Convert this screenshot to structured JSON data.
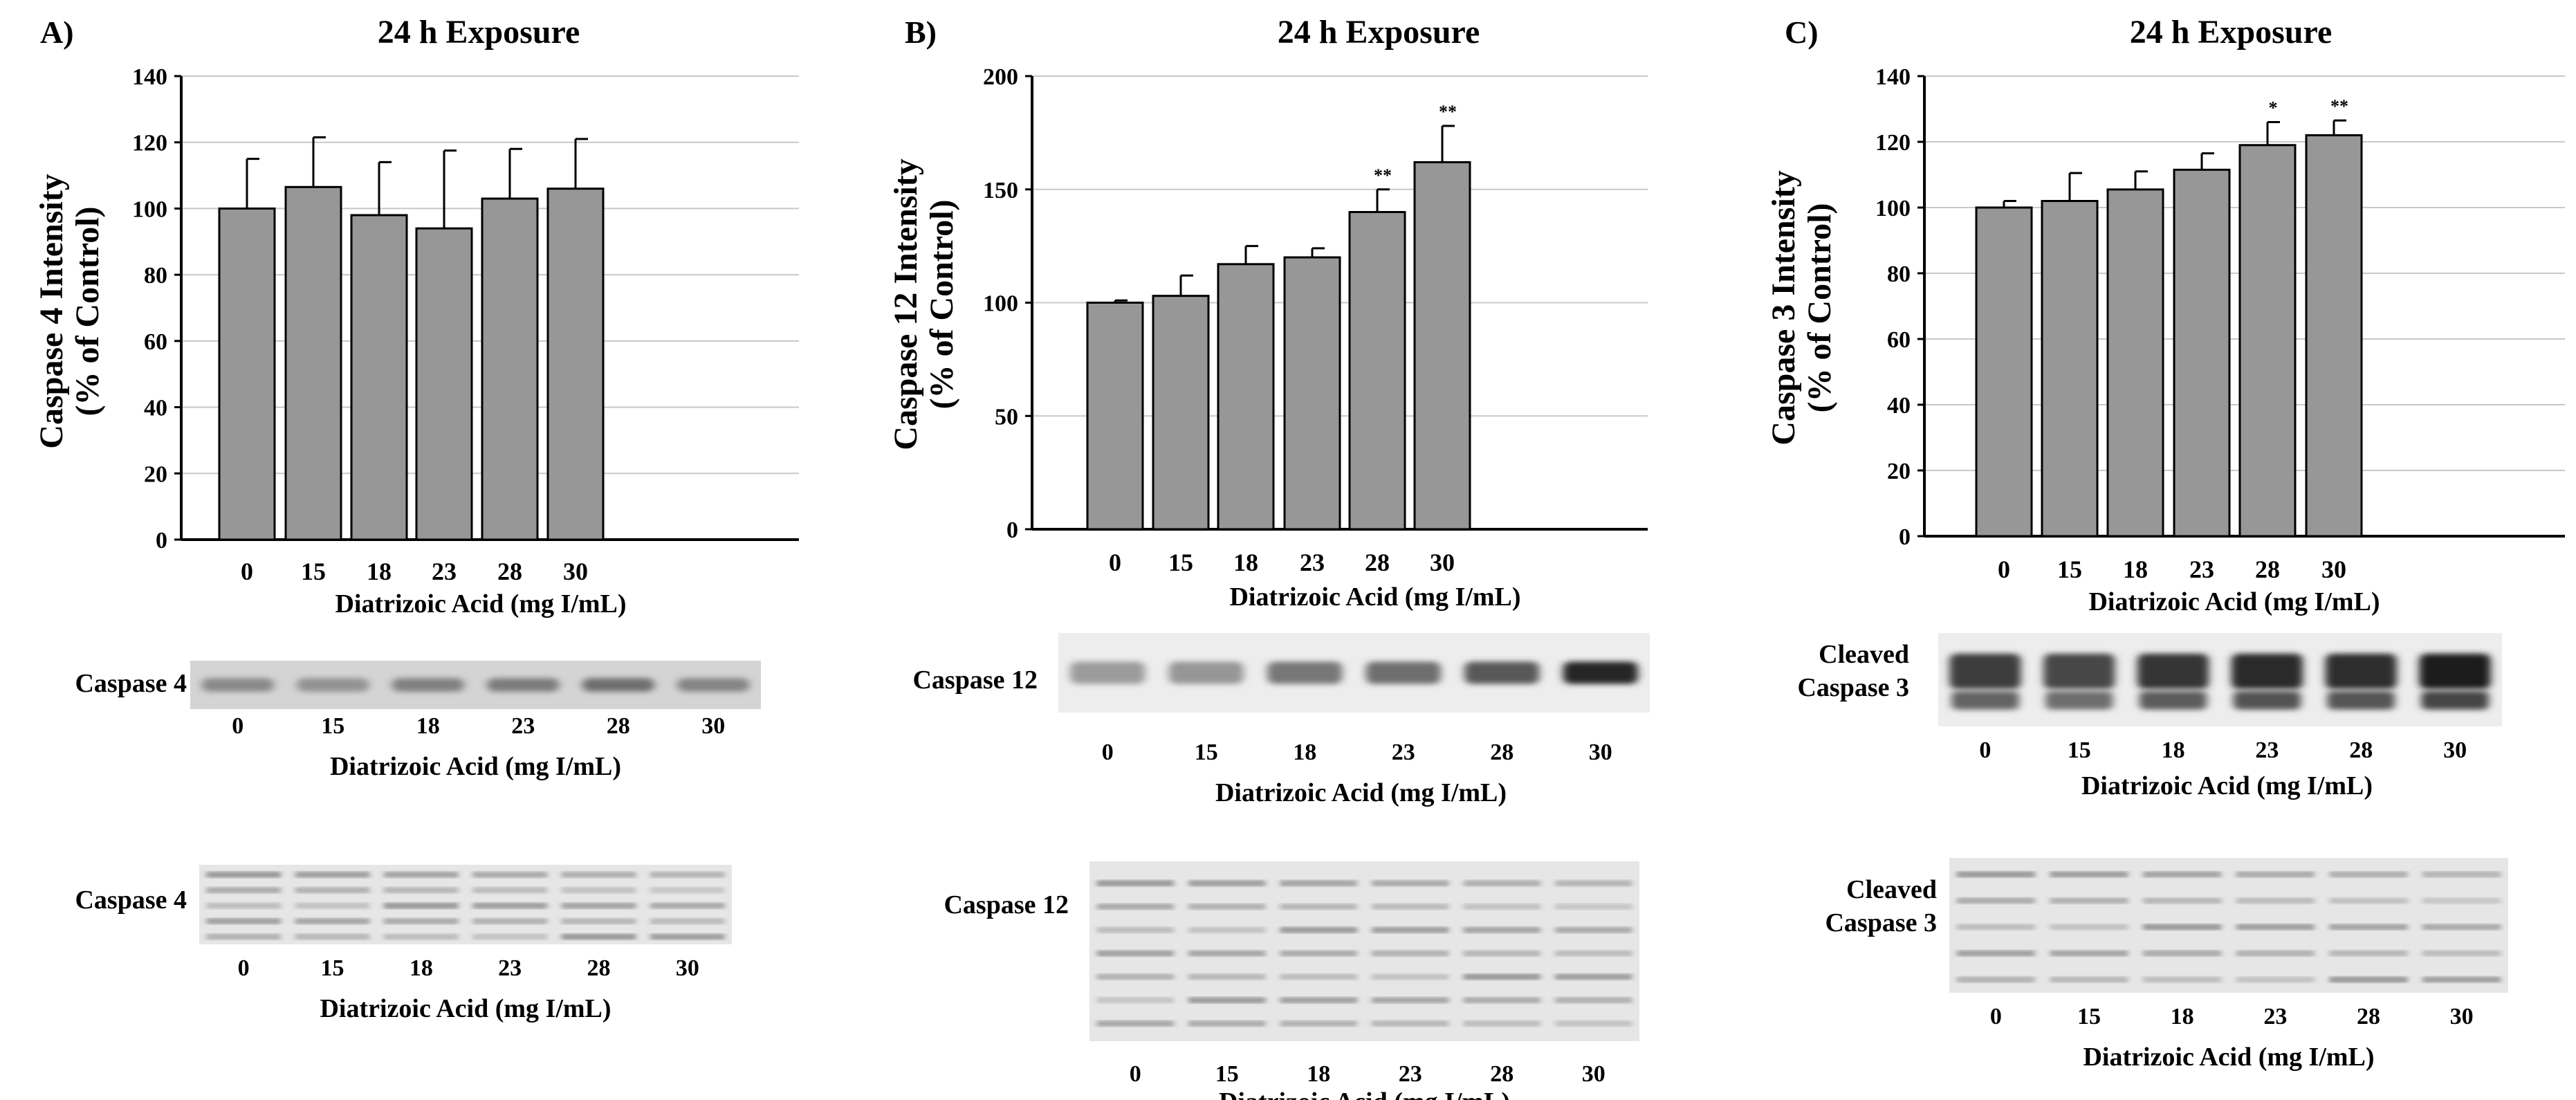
{
  "colors": {
    "bar": "#979797",
    "grid": "#c8c8c8",
    "axis": "#000000",
    "blot_bg": "#ededed",
    "band": "#2a2a2a"
  },
  "panels": [
    {
      "label": "A)",
      "title": "24 h Exposure",
      "blot_label": "Caspase 4",
      "loading_label": "Caspase 4",
      "blot_intensity": [
        0.35,
        0.3,
        0.4,
        0.42,
        0.5,
        0.38
      ],
      "blot_xlabel": "Diatrizoic Acid (mg I/mL)",
      "loading_xlabel": "Diatrizoic Acid (mg I/mL)"
    },
    {
      "label": "B)",
      "title": "24 h Exposure",
      "blot_label": "Caspase 12",
      "loading_label": "Caspase 12",
      "blot_intensity": [
        0.25,
        0.28,
        0.45,
        0.5,
        0.62,
        0.9
      ],
      "blot_xlabel": "Diatrizoic Acid (mg I/mL)",
      "loading_xlabel": "Diatrizoic Acid (mg I/mL)"
    },
    {
      "label": "C)",
      "title": "24 h Exposure",
      "blot_label": [
        "Cleaved",
        "Caspase 3"
      ],
      "loading_label": [
        "Cleaved",
        "Caspase 3"
      ],
      "blot_intensity": [
        0.78,
        0.72,
        0.82,
        0.88,
        0.86,
        0.95
      ],
      "blot_xlabel": "Diatrizoic Acid (mg I/mL)",
      "loading_xlabel": "Diatrizoic Acid (mg I/mL)"
    }
  ],
  "chart_data": [
    {
      "type": "bar",
      "title": "24 h Exposure",
      "xlabel": "Diatrizoic Acid (mg I/mL)",
      "ylabel": [
        "Caspase 4 Intensity",
        "(% of Control)"
      ],
      "categories": [
        "0",
        "15",
        "18",
        "23",
        "28",
        "30"
      ],
      "values": [
        100,
        106.5,
        98,
        94,
        103,
        106
      ],
      "errors": [
        15,
        15,
        16,
        23.5,
        15,
        15
      ],
      "significance": [
        "",
        "",
        "",
        "",
        "",
        ""
      ],
      "ylim": [
        0,
        140
      ],
      "yticks": [
        0,
        20,
        40,
        60,
        80,
        100,
        120,
        140
      ],
      "grid": true
    },
    {
      "type": "bar",
      "title": "24 h Exposure",
      "xlabel": "Diatrizoic Acid (mg I/mL)",
      "ylabel": [
        "Caspase 12 Intensity",
        "(% of Control)"
      ],
      "categories": [
        "0",
        "15",
        "18",
        "23",
        "28",
        "30"
      ],
      "values": [
        100,
        103,
        117,
        120,
        140,
        162
      ],
      "errors": [
        1,
        9,
        8,
        4,
        10,
        16
      ],
      "significance": [
        "",
        "",
        "",
        "",
        "**",
        "**"
      ],
      "ylim": [
        0,
        200
      ],
      "yticks": [
        0,
        50,
        100,
        150,
        200
      ],
      "grid": true
    },
    {
      "type": "bar",
      "title": "24 h Exposure",
      "xlabel": "Diatrizoic Acid (mg I/mL)",
      "ylabel": [
        "Caspase 3 Intensity",
        "(% of Control)"
      ],
      "categories": [
        "0",
        "15",
        "18",
        "23",
        "28",
        "30"
      ],
      "values": [
        100,
        102,
        105.5,
        111.5,
        119,
        122
      ],
      "errors": [
        2,
        8.5,
        5.5,
        5,
        7,
        4.5
      ],
      "significance": [
        "",
        "",
        "",
        "",
        "*",
        "**"
      ],
      "ylim": [
        0,
        140
      ],
      "yticks": [
        0,
        20,
        40,
        60,
        80,
        100,
        120,
        140
      ],
      "grid": true
    }
  ]
}
